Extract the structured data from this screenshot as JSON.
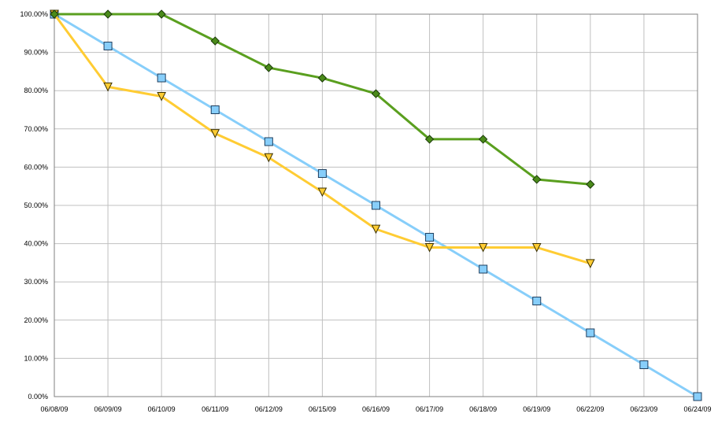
{
  "chart_data": {
    "type": "line",
    "title": "",
    "xlabel": "",
    "ylabel": "",
    "categories": [
      "06/08/09",
      "06/09/09",
      "06/10/09",
      "06/11/09",
      "06/12/09",
      "06/15/09",
      "06/16/09",
      "06/17/09",
      "06/18/09",
      "06/19/09",
      "06/22/09",
      "06/23/09",
      "06/24/09"
    ],
    "y_ticks": [
      "0.00%",
      "10.00%",
      "20.00%",
      "30.00%",
      "40.00%",
      "50.00%",
      "60.00%",
      "70.00%",
      "80.00%",
      "90.00%",
      "100.00%"
    ],
    "ylim": [
      0,
      100
    ],
    "y_unit": "%",
    "grid": true,
    "legend": "none",
    "series": [
      {
        "marker": "square",
        "color": "#87CEFA",
        "marker_fill": "#87CEFA",
        "values": [
          100,
          91.67,
          83.33,
          75.0,
          66.67,
          58.33,
          50.0,
          41.67,
          33.33,
          25.0,
          16.67,
          8.33,
          0.0
        ]
      },
      {
        "marker": "triangle-down",
        "color": "#FFCC33",
        "marker_fill": "#FFCC33",
        "values": [
          100,
          81.0,
          78.5,
          68.8,
          62.5,
          53.5,
          43.8,
          39.0,
          39.0,
          39.0,
          34.8,
          null,
          null
        ]
      },
      {
        "marker": "diamond",
        "color": "#5A9F1F",
        "marker_fill": "#4A8A1A",
        "values": [
          100,
          100,
          100,
          93.0,
          86.0,
          83.3,
          79.2,
          67.3,
          67.3,
          56.8,
          55.5,
          null,
          null
        ]
      }
    ]
  }
}
